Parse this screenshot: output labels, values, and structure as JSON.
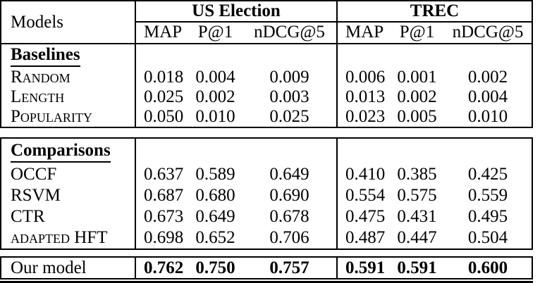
{
  "table": {
    "colors": {
      "border": "#000000",
      "text": "#000000",
      "background": "#ffffff"
    },
    "header": {
      "models_label": "Models",
      "groups": [
        {
          "label": "US Election",
          "metrics": [
            "MAP",
            "P@1",
            "nDCG@5"
          ]
        },
        {
          "label": "TREC",
          "metrics": [
            "MAP",
            "P@1",
            "nDCG@5"
          ]
        }
      ]
    },
    "sections": [
      {
        "heading": "Baselines",
        "rows": [
          {
            "model": "Random",
            "us": [
              "0.018",
              "0.004",
              "0.009"
            ],
            "trec": [
              "0.006",
              "0.001",
              "0.002"
            ]
          },
          {
            "model": "Length",
            "us": [
              "0.025",
              "0.002",
              "0.003"
            ],
            "trec": [
              "0.013",
              "0.002",
              "0.004"
            ]
          },
          {
            "model": "Popularity",
            "us": [
              "0.050",
              "0.010",
              "0.025"
            ],
            "trec": [
              "0.023",
              "0.005",
              "0.010"
            ]
          }
        ]
      },
      {
        "heading": "Comparisons",
        "rows": [
          {
            "model": "OCCF",
            "us": [
              "0.637",
              "0.589",
              "0.649"
            ],
            "trec": [
              "0.410",
              "0.385",
              "0.425"
            ]
          },
          {
            "model": "RSVM",
            "us": [
              "0.687",
              "0.680",
              "0.690"
            ],
            "trec": [
              "0.554",
              "0.575",
              "0.559"
            ]
          },
          {
            "model": "CTR",
            "us": [
              "0.673",
              "0.649",
              "0.678"
            ],
            "trec": [
              "0.475",
              "0.431",
              "0.495"
            ]
          },
          {
            "model": "adapted HFT",
            "us": [
              "0.698",
              "0.652",
              "0.706"
            ],
            "trec": [
              "0.487",
              "0.447",
              "0.504"
            ]
          }
        ]
      }
    ],
    "final_row": {
      "model": "Our model",
      "us": [
        "0.762",
        "0.750",
        "0.757"
      ],
      "trec": [
        "0.591",
        "0.591",
        "0.600"
      ]
    }
  }
}
